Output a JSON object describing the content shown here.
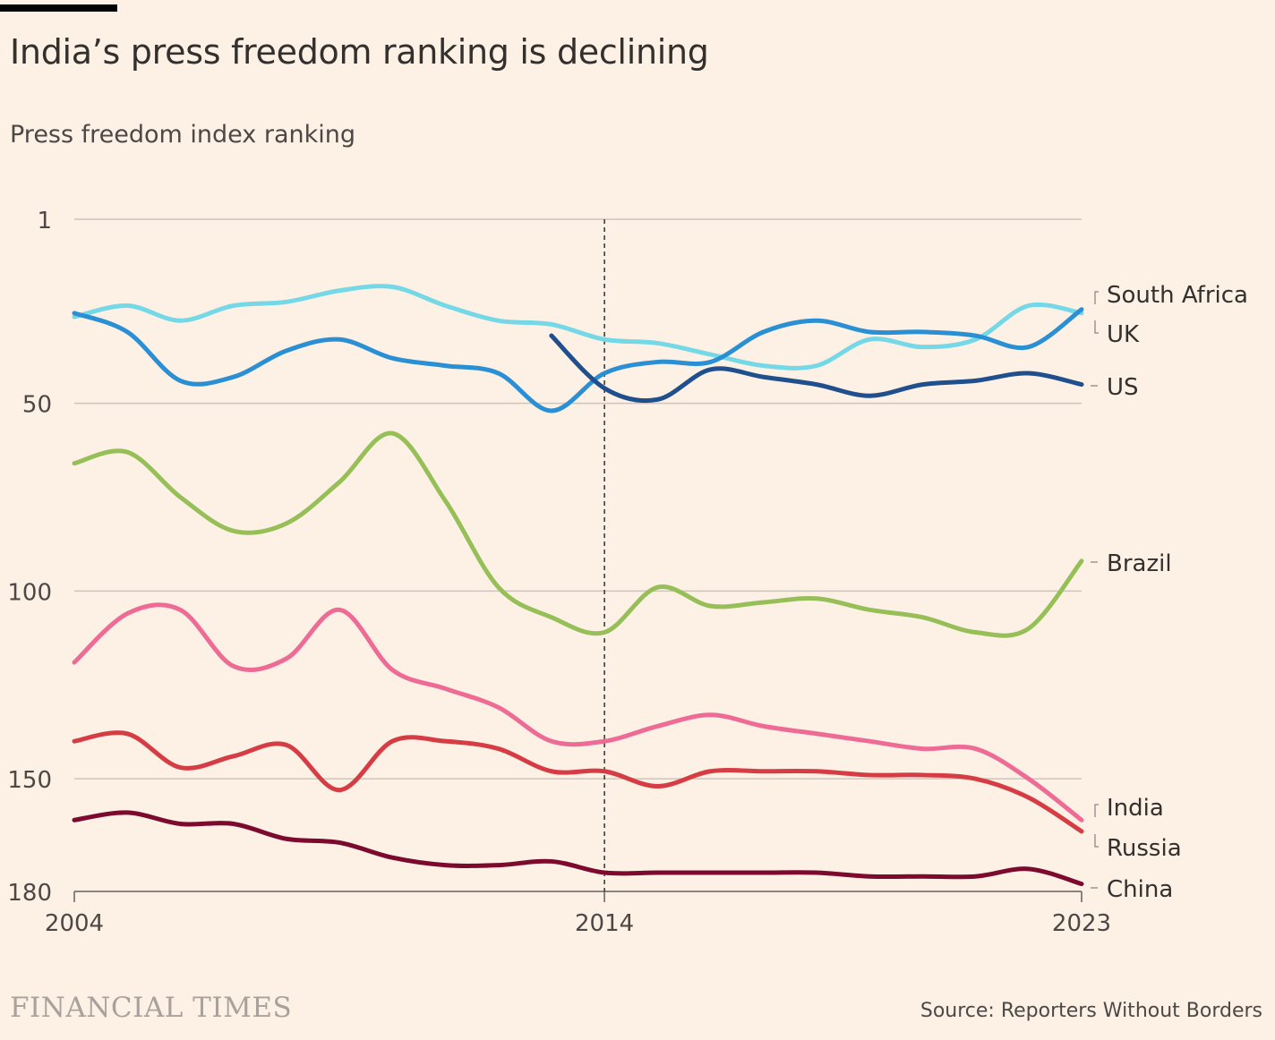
{
  "chart_data": {
    "type": "line",
    "title": "India’s press freedom ranking is declining",
    "subtitle": "Press freedom index ranking",
    "xlabel": "",
    "ylabel": "Press freedom index ranking",
    "x": [
      2004,
      2005,
      2006,
      2007,
      2008,
      2009,
      2010,
      2011,
      2012,
      2013,
      2014,
      2015,
      2016,
      2017,
      2018,
      2019,
      2020,
      2021,
      2022,
      2023
    ],
    "xlim": [
      2004,
      2023
    ],
    "ylim": [
      1,
      180
    ],
    "y_inverted": true,
    "x_ticks": [
      "2004",
      "2014",
      "2023"
    ],
    "y_ticks": [
      "1",
      "50",
      "100",
      "150",
      "180"
    ],
    "y_tick_values": [
      1,
      50,
      100,
      150,
      180
    ],
    "x_tick_values": [
      2004,
      2014,
      2023
    ],
    "reference_line": {
      "x": 2014,
      "style": "dashed"
    },
    "grid": true,
    "legend": "direct labels at right",
    "series": [
      {
        "name": "South Africa",
        "color": "#74d8e6",
        "values": [
          27,
          24,
          28,
          24,
          23,
          20,
          19,
          24,
          28,
          29,
          33,
          34,
          37,
          40,
          40,
          33,
          35,
          33,
          24,
          26
        ]
      },
      {
        "name": "UK",
        "color": "#2b8fd4",
        "values": [
          26,
          31,
          44,
          43,
          36,
          33,
          38,
          40,
          42,
          52,
          42,
          39,
          39,
          31,
          28,
          31,
          31,
          32,
          35,
          25
        ]
      },
      {
        "name": "US",
        "color": "#1f4f8c",
        "values": [
          null,
          null,
          null,
          null,
          null,
          null,
          null,
          null,
          null,
          32,
          46,
          49,
          41,
          43,
          45,
          48,
          45,
          44,
          42,
          45
        ]
      },
      {
        "name": "Brazil",
        "color": "#97bf58",
        "values": [
          66,
          63,
          75,
          84,
          82,
          71,
          58,
          76,
          99,
          107,
          111,
          99,
          104,
          103,
          102,
          105,
          107,
          111,
          110,
          92
        ]
      },
      {
        "name": "India",
        "color": "#ee6b96",
        "values": [
          119,
          106,
          105,
          120,
          118,
          105,
          121,
          126,
          131,
          140,
          140,
          136,
          133,
          136,
          138,
          140,
          142,
          142,
          150,
          161
        ]
      },
      {
        "name": "Russia",
        "color": "#d63c44",
        "values": [
          140,
          138,
          147,
          144,
          141,
          153,
          140,
          140,
          142,
          148,
          148,
          152,
          148,
          148,
          148,
          149,
          149,
          150,
          155,
          164
        ]
      },
      {
        "name": "China",
        "color": "#7b0a2e",
        "values": [
          161,
          159,
          162,
          162,
          166,
          167,
          171,
          173,
          173,
          172,
          175,
          175,
          175,
          175,
          175,
          176,
          176,
          176,
          174,
          178
        ]
      }
    ]
  },
  "footer": {
    "logo": "FINANCIAL TIMES",
    "source": "Source: Reporters Without Borders"
  }
}
